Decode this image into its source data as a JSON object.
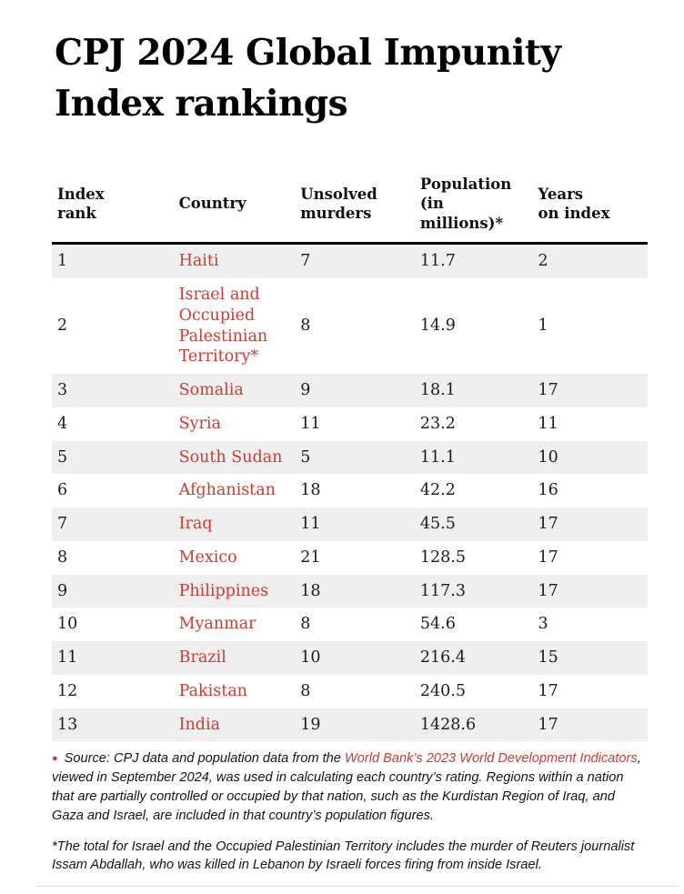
{
  "title": "CPJ 2024 Global Impunity Index rankings",
  "colors": {
    "accent_red": "#d03a30",
    "row_alt_bg": "#efefef",
    "header_rule": "#000000",
    "bottom_divider": "#dcdcdc"
  },
  "table": {
    "columns": [
      {
        "label": "Index\nrank"
      },
      {
        "label": "Country"
      },
      {
        "label": "Unsolved\nmurders"
      },
      {
        "label": "Population\n(in millions)*"
      },
      {
        "label": "Years\non index"
      }
    ],
    "rows": [
      {
        "rank": "1",
        "country": "Haiti",
        "unsolved_murders": "7",
        "population_millions": "11.7",
        "years_on_index": "2"
      },
      {
        "rank": "2",
        "country": "Israel and Occupied Palestinian Territory*",
        "unsolved_murders": "8",
        "population_millions": "14.9",
        "years_on_index": "1"
      },
      {
        "rank": "3",
        "country": "Somalia",
        "unsolved_murders": "9",
        "population_millions": "18.1",
        "years_on_index": "17"
      },
      {
        "rank": "4",
        "country": "Syria",
        "unsolved_murders": "11",
        "population_millions": "23.2",
        "years_on_index": "11"
      },
      {
        "rank": "5",
        "country": "South Sudan",
        "unsolved_murders": "5",
        "population_millions": "11.1",
        "years_on_index": "10"
      },
      {
        "rank": "6",
        "country": "Afghanistan",
        "unsolved_murders": "18",
        "population_millions": "42.2",
        "years_on_index": "16"
      },
      {
        "rank": "7",
        "country": "Iraq",
        "unsolved_murders": "11",
        "population_millions": "45.5",
        "years_on_index": "17"
      },
      {
        "rank": "8",
        "country": "Mexico",
        "unsolved_murders": "21",
        "population_millions": "128.5",
        "years_on_index": "17"
      },
      {
        "rank": "9",
        "country": "Philippines",
        "unsolved_murders": "18",
        "population_millions": "117.3",
        "years_on_index": "17"
      },
      {
        "rank": "10",
        "country": "Myanmar",
        "unsolved_murders": "8",
        "population_millions": "54.6",
        "years_on_index": "3"
      },
      {
        "rank": "11",
        "country": "Brazil",
        "unsolved_murders": "10",
        "population_millions": "216.4",
        "years_on_index": "15"
      },
      {
        "rank": "12",
        "country": "Pakistan",
        "unsolved_murders": "8",
        "population_millions": "240.5",
        "years_on_index": "17"
      },
      {
        "rank": "13",
        "country": "India",
        "unsolved_murders": "19",
        "population_millions": "1428.6",
        "years_on_index": "17"
      }
    ]
  },
  "source_note": {
    "bullet": "●",
    "text_before_link": "Source: CPJ data and population data from the ",
    "link_text": "World Bank’s 2023 World Development Indicators",
    "text_after_link": ", viewed in September 2024, was used in calculating each country’s rating. Regions within a nation that are partially controlled or occupied by that nation, such as the Kurdistan Region of Iraq, and Gaza and Israel, are included in that country’s population figures."
  },
  "footnote": "*The total for Israel and the Occupied Palestinian Territory includes the murder of Reuters journalist Issam Abdallah, who was killed in Lebanon by Israeli forces firing from inside Israel.",
  "chart_data": {
    "type": "table",
    "title": "CPJ 2024 Global Impunity Index rankings",
    "columns": [
      "Index rank",
      "Country",
      "Unsolved murders",
      "Population (in millions)*",
      "Years on index"
    ],
    "rows": [
      [
        1,
        "Haiti",
        7,
        11.7,
        2
      ],
      [
        2,
        "Israel and Occupied Palestinian Territory*",
        8,
        14.9,
        1
      ],
      [
        3,
        "Somalia",
        9,
        18.1,
        17
      ],
      [
        4,
        "Syria",
        11,
        23.2,
        11
      ],
      [
        5,
        "South Sudan",
        5,
        11.1,
        10
      ],
      [
        6,
        "Afghanistan",
        18,
        42.2,
        16
      ],
      [
        7,
        "Iraq",
        11,
        45.5,
        17
      ],
      [
        8,
        "Mexico",
        21,
        128.5,
        17
      ],
      [
        9,
        "Philippines",
        18,
        117.3,
        17
      ],
      [
        10,
        "Myanmar",
        8,
        54.6,
        3
      ],
      [
        11,
        "Brazil",
        10,
        216.4,
        15
      ],
      [
        12,
        "Pakistan",
        8,
        240.5,
        17
      ],
      [
        13,
        "India",
        19,
        1428.6,
        17
      ]
    ]
  }
}
